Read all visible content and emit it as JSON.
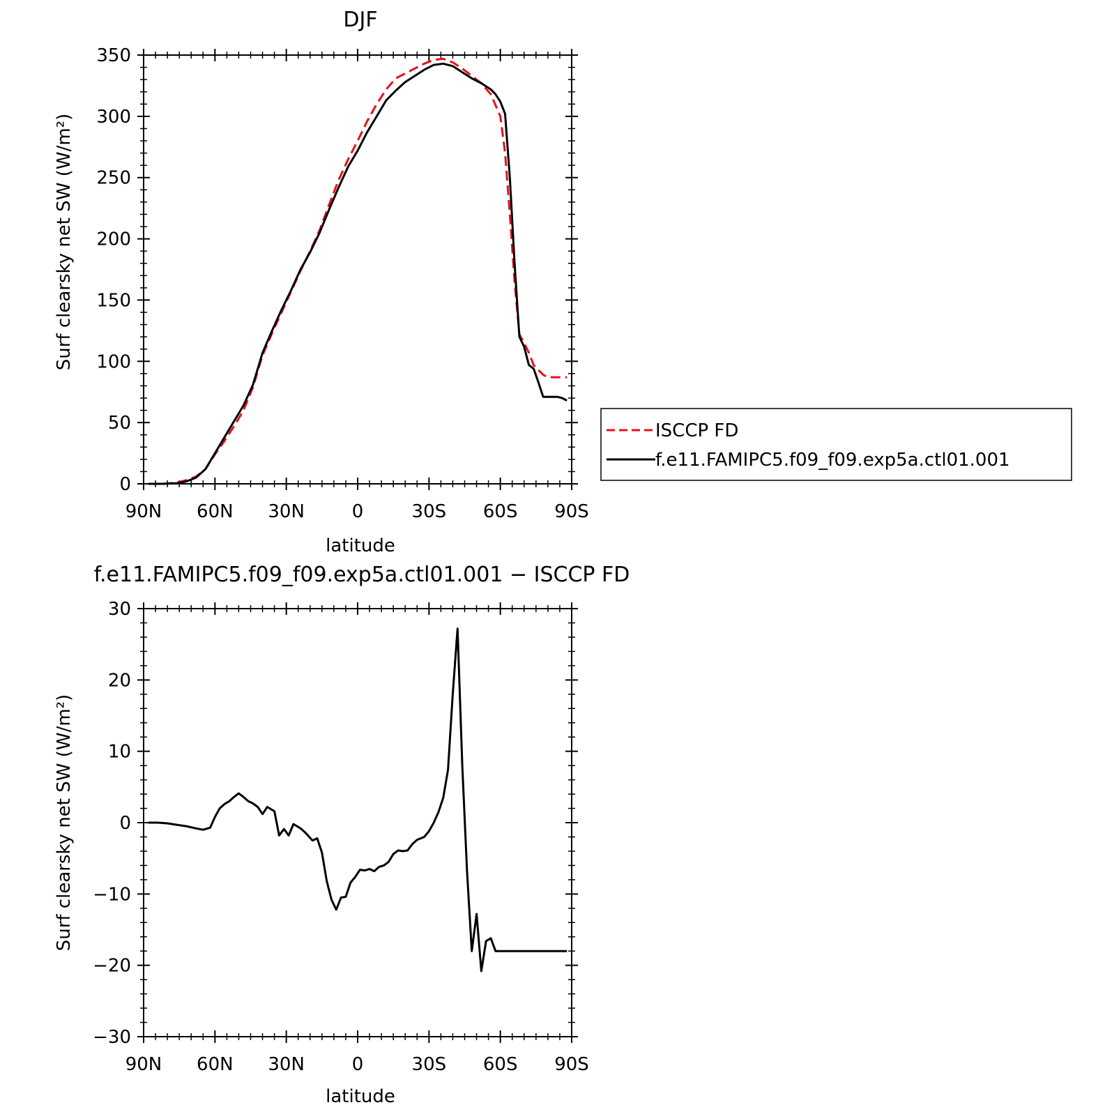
{
  "chart_data": [
    {
      "type": "line",
      "title": "DJF",
      "xlabel": "latitude",
      "ylabel": "Surf clearsky net SW (W/m²)",
      "x_ticks": [
        "90N",
        "60N",
        "30N",
        "0",
        "30S",
        "60S",
        "90S"
      ],
      "x_tick_values": [
        -90,
        -60,
        -30,
        0,
        30,
        60,
        90
      ],
      "xlim": [
        -90,
        90
      ],
      "ylim": [
        0,
        350
      ],
      "y_ticks": [
        "0",
        "50",
        "100",
        "150",
        "200",
        "250",
        "300",
        "350"
      ],
      "y_tick_values": [
        0,
        50,
        100,
        150,
        200,
        250,
        300,
        350
      ],
      "legend": {
        "placement": "right",
        "entries": [
          "ISCCP FD",
          "f.e11.FAMIPC5.f09_f09.exp5a.ctl01.001"
        ]
      },
      "series": [
        {
          "name": "ISCCP FD",
          "color": "#e8101a",
          "dash": true,
          "x": [
            -88,
            -82,
            -76,
            -72,
            -68,
            -64,
            -60,
            -56,
            -52,
            -48,
            -44,
            -40,
            -36,
            -32,
            -28,
            -24,
            -20,
            -16,
            -12,
            -8,
            -4,
            0,
            4,
            8,
            12,
            16,
            20,
            24,
            28,
            32,
            36,
            40,
            44,
            48,
            52,
            56,
            60,
            62,
            64,
            66,
            68,
            70,
            72,
            74,
            76,
            78,
            80,
            82,
            84,
            86,
            88
          ],
          "y": [
            0,
            0,
            1,
            3,
            6,
            12,
            24,
            35,
            47,
            60,
            79,
            105,
            123,
            140,
            157,
            174,
            190,
            207,
            228,
            248,
            265,
            280,
            296,
            310,
            322,
            331,
            335,
            339,
            343,
            346,
            347,
            344,
            339,
            333,
            327,
            318,
            300,
            270,
            220,
            165,
            122,
            115,
            107,
            97,
            93,
            89,
            87,
            87,
            87,
            87,
            87
          ]
        },
        {
          "name": "f.e11.FAMIPC5.f09_f09.exp5a.ctl01.001",
          "color": "#000000",
          "dash": false,
          "x": [
            -88,
            -82,
            -76,
            -72,
            -68,
            -64,
            -60,
            -56,
            -52,
            -48,
            -44,
            -40,
            -36,
            -32,
            -28,
            -24,
            -20,
            -16,
            -12,
            -8,
            -4,
            0,
            4,
            8,
            12,
            16,
            20,
            24,
            28,
            32,
            36,
            40,
            44,
            48,
            52,
            56,
            58,
            60,
            62,
            64,
            66,
            68,
            70,
            72,
            74,
            76,
            78,
            80,
            82,
            84,
            86,
            88
          ],
          "y": [
            0,
            0,
            0.5,
            2,
            5,
            12,
            25,
            38,
            51,
            64,
            81,
            107,
            125,
            142,
            158,
            175,
            189,
            205,
            224,
            242,
            259,
            272,
            287,
            300,
            313,
            321,
            328,
            333,
            338,
            342,
            343,
            341,
            336,
            331,
            327,
            322,
            318,
            312,
            302,
            250,
            180,
            120,
            112,
            97,
            94,
            83,
            71,
            71,
            71,
            71,
            70,
            68
          ]
        }
      ]
    },
    {
      "type": "line",
      "title": "f.e11.FAMIPC5.f09_f09.exp5a.ctl01.001 − ISCCP FD",
      "xlabel": "latitude",
      "ylabel": "Surf clearsky net SW (W/m²)",
      "x_ticks": [
        "90N",
        "60N",
        "30N",
        "0",
        "30S",
        "60S",
        "90S"
      ],
      "x_tick_values": [
        -90,
        -60,
        -30,
        0,
        30,
        60,
        90
      ],
      "xlim": [
        -90,
        90
      ],
      "ylim": [
        -30,
        30
      ],
      "y_ticks": [
        "−30",
        "−20",
        "−10",
        "0",
        "10",
        "20",
        "30"
      ],
      "y_tick_values": [
        -30,
        -20,
        -10,
        0,
        10,
        20,
        30
      ],
      "series": [
        {
          "color": "#000000",
          "dash": false,
          "x": [
            -88,
            -84,
            -80,
            -76,
            -72,
            -68,
            -65,
            -62,
            -60,
            -58,
            -56,
            -54,
            -52,
            -50,
            -48,
            -46,
            -44,
            -42,
            -40,
            -38,
            -35,
            -33,
            -31,
            -29,
            -27,
            -24,
            -22,
            -19,
            -17,
            -15,
            -13,
            -11,
            -9,
            -7,
            -5,
            -3,
            -1,
            1,
            3,
            5,
            7,
            9,
            11,
            13,
            15,
            17,
            19,
            21,
            23,
            25,
            28,
            30,
            32,
            34,
            36,
            38,
            40,
            42,
            44,
            46,
            48,
            50,
            52,
            54,
            56,
            58,
            60,
            62,
            64,
            66,
            68,
            70,
            72,
            74,
            76,
            78,
            80,
            82,
            84,
            86,
            88
          ],
          "y": [
            0,
            0,
            -0.1,
            -0.3,
            -0.5,
            -0.8,
            -1.0,
            -0.7,
            0.8,
            2.0,
            2.6,
            3.0,
            3.6,
            4.1,
            3.6,
            3.0,
            2.7,
            2.2,
            1.2,
            2.2,
            1.6,
            -1.8,
            -0.9,
            -1.8,
            -0.2,
            -0.8,
            -1.4,
            -2.5,
            -2.2,
            -4.2,
            -8.2,
            -10.8,
            -12.2,
            -10.5,
            -10.4,
            -8.4,
            -7.6,
            -6.6,
            -6.7,
            -6.5,
            -6.8,
            -6.2,
            -6.0,
            -5.5,
            -4.4,
            -3.9,
            -4.0,
            -3.9,
            -3.0,
            -2.4,
            -2.0,
            -1.2,
            0,
            1.5,
            3.5,
            7.4,
            18.0,
            27.2,
            8.0,
            -6.8,
            -18.0,
            -12.8,
            -20.8,
            -16.6,
            -16.2,
            -18.0,
            -18.0,
            -18.0,
            -18.0,
            -18.0,
            -18.0,
            -18.0,
            -18.0,
            -18.0,
            -18.0,
            -18.0,
            -18.0,
            -18.0,
            -18.0,
            -18.0,
            -18.0
          ]
        }
      ]
    }
  ]
}
